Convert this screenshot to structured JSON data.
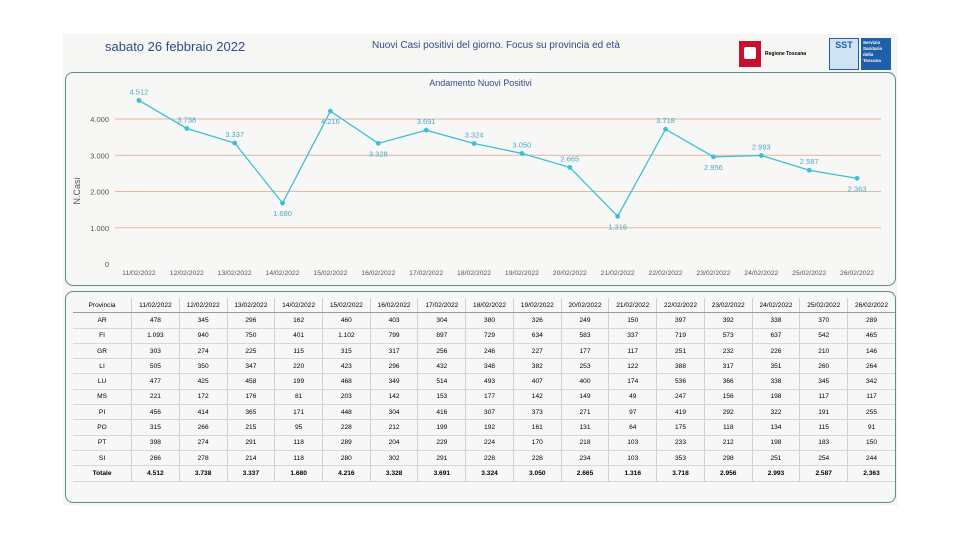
{
  "header": {
    "date": "sabato 26 febbraio 2022",
    "title": "Nuovi Casi positivi del giorno. Focus su provincia ed età",
    "logo_regione": "Regione Toscana",
    "logo_sst_short": "SST",
    "logo_sst_long": "Servizio Sanitario della Toscana"
  },
  "colors": {
    "line": "#3cbfd8",
    "grid": "#e2b8a0",
    "border": "#5a8d86",
    "text": "#2d4e86"
  },
  "chart_data": {
    "type": "line",
    "title": "Andamento Nuovi Positivi",
    "ylabel": "N.Casi",
    "xlabel": "",
    "ylim": [
      0,
      4000
    ],
    "yticks": [
      0,
      1000,
      2000,
      3000,
      4000
    ],
    "ytick_labels": [
      "0",
      "1.000",
      "2.000",
      "3.000",
      "4.000"
    ],
    "grid": true,
    "categories": [
      "11/02/2022",
      "12/02/2022",
      "13/02/2022",
      "14/02/2022",
      "15/02/2022",
      "16/02/2022",
      "17/02/2022",
      "18/02/2022",
      "19/02/2022",
      "20/02/2022",
      "21/02/2022",
      "22/02/2022",
      "23/02/2022",
      "24/02/2022",
      "25/02/2022",
      "26/02/2022"
    ],
    "values": [
      4512,
      3738,
      3337,
      1680,
      4216,
      3328,
      3691,
      3324,
      3050,
      2665,
      1316,
      3718,
      2956,
      2993,
      2587,
      2363
    ],
    "value_labels": [
      "4.512",
      "3.738",
      "3.337",
      "1.680",
      "4.216",
      "3.328",
      "3.691",
      "3.324",
      "3.050",
      "2.665",
      "1.316",
      "3.718",
      "2.956",
      "2.993",
      "2.587",
      "2.363"
    ],
    "label_pos": [
      "above",
      "above",
      "above",
      "below",
      "below",
      "below",
      "above",
      "above",
      "above",
      "above",
      "below",
      "above",
      "below",
      "above",
      "above",
      "below"
    ]
  },
  "table": {
    "header": "Provincia",
    "dates": [
      "11/02/2022",
      "12/02/2022",
      "13/02/2022",
      "14/02/2022",
      "15/02/2022",
      "16/02/2022",
      "17/02/2022",
      "18/02/2022",
      "19/02/2022",
      "20/02/2022",
      "21/02/2022",
      "22/02/2022",
      "23/02/2022",
      "24/02/2022",
      "25/02/2022",
      "26/02/2022"
    ],
    "rows": [
      {
        "provincia": "AR",
        "values": [
          "478",
          "345",
          "296",
          "162",
          "460",
          "403",
          "304",
          "380",
          "326",
          "249",
          "150",
          "397",
          "392",
          "338",
          "370",
          "289"
        ]
      },
      {
        "provincia": "FI",
        "values": [
          "1.093",
          "940",
          "750",
          "401",
          "1.102",
          "799",
          "897",
          "729",
          "634",
          "583",
          "337",
          "719",
          "573",
          "637",
          "542",
          "465"
        ]
      },
      {
        "provincia": "GR",
        "values": [
          "303",
          "274",
          "225",
          "115",
          "315",
          "317",
          "256",
          "246",
          "227",
          "177",
          "117",
          "251",
          "232",
          "226",
          "210",
          "146"
        ]
      },
      {
        "provincia": "LI",
        "values": [
          "505",
          "350",
          "347",
          "220",
          "423",
          "296",
          "432",
          "348",
          "382",
          "253",
          "122",
          "388",
          "317",
          "351",
          "260",
          "264"
        ]
      },
      {
        "provincia": "LU",
        "values": [
          "477",
          "425",
          "458",
          "199",
          "468",
          "349",
          "514",
          "493",
          "407",
          "400",
          "174",
          "536",
          "366",
          "338",
          "345",
          "342"
        ]
      },
      {
        "provincia": "MS",
        "values": [
          "221",
          "172",
          "176",
          "81",
          "203",
          "142",
          "153",
          "177",
          "142",
          "149",
          "49",
          "247",
          "156",
          "198",
          "117",
          "117"
        ]
      },
      {
        "provincia": "PI",
        "values": [
          "456",
          "414",
          "365",
          "171",
          "448",
          "304",
          "416",
          "307",
          "373",
          "271",
          "97",
          "419",
          "292",
          "322",
          "191",
          "255"
        ]
      },
      {
        "provincia": "PO",
        "values": [
          "315",
          "266",
          "215",
          "95",
          "228",
          "212",
          "199",
          "192",
          "161",
          "131",
          "64",
          "175",
          "118",
          "134",
          "115",
          "91"
        ]
      },
      {
        "provincia": "PT",
        "values": [
          "398",
          "274",
          "291",
          "118",
          "289",
          "204",
          "229",
          "224",
          "170",
          "218",
          "103",
          "233",
          "212",
          "198",
          "183",
          "150"
        ]
      },
      {
        "provincia": "SI",
        "values": [
          "266",
          "278",
          "214",
          "118",
          "280",
          "302",
          "291",
          "228",
          "228",
          "234",
          "103",
          "353",
          "298",
          "251",
          "254",
          "244"
        ]
      }
    ],
    "total": {
      "provincia": "Totale",
      "values": [
        "4.512",
        "3.738",
        "3.337",
        "1.680",
        "4.216",
        "3.328",
        "3.691",
        "3.324",
        "3.050",
        "2.665",
        "1.316",
        "3.718",
        "2.956",
        "2.993",
        "2.587",
        "2.363"
      ]
    }
  }
}
